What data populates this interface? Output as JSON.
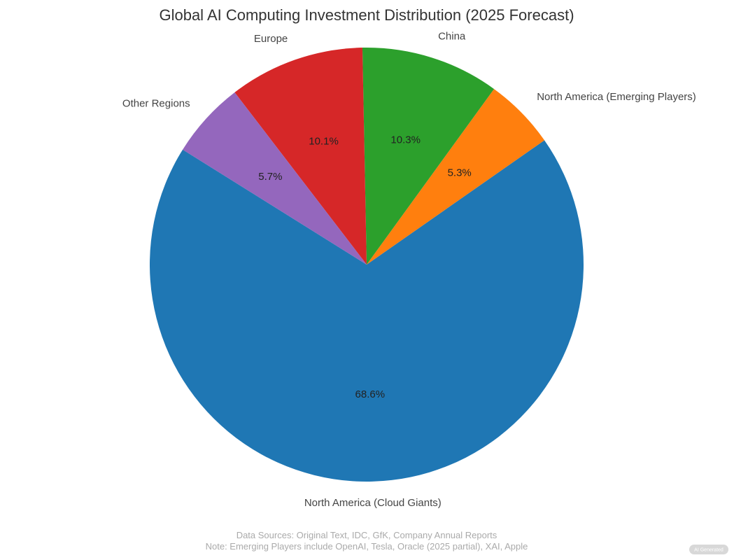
{
  "chart_data": {
    "type": "pie",
    "title": "Global AI Computing Investment Distribution (2025 Forecast)",
    "slices": [
      {
        "label": "North America (Cloud Giants)",
        "value": 68.6,
        "display": "68.6%",
        "color": "#1f77b4"
      },
      {
        "label": "North America (Emerging Players)",
        "value": 5.3,
        "display": "5.3%",
        "color": "#ff7f0e"
      },
      {
        "label": "China",
        "value": 10.3,
        "display": "10.3%",
        "color": "#2ca02c"
      },
      {
        "label": "Europe",
        "value": 10.1,
        "display": "10.1%",
        "color": "#d62728"
      },
      {
        "label": "Other Regions",
        "value": 5.7,
        "display": "5.7%",
        "color": "#9467bd"
      }
    ],
    "start_angle_deg": 148,
    "direction": "counterclockwise",
    "legend": "none"
  },
  "footer": {
    "sources": "Data Sources: Original Text, IDC, GfK, Company Annual Reports",
    "note": "Note: Emerging Players include OpenAI, Tesla, Oracle (2025 partial), XAI, Apple"
  },
  "badge": {
    "text": "AI Generated"
  }
}
